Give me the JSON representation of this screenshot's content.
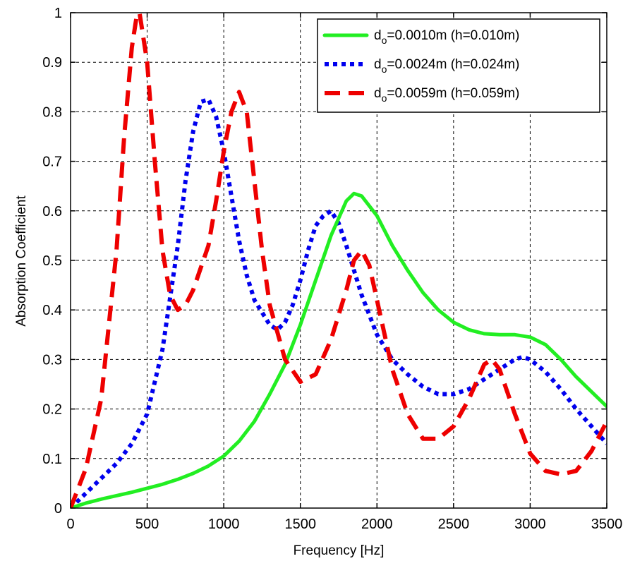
{
  "chart_data": {
    "type": "line",
    "title": "",
    "xlabel": "Frequency [Hz]",
    "ylabel": "Absorption Coefficient",
    "xlim": [
      0,
      3500
    ],
    "ylim": [
      0,
      1
    ],
    "xticks": [
      0,
      500,
      1000,
      1500,
      2000,
      2500,
      3000,
      3500
    ],
    "xtick_labels": [
      "0",
      "500",
      "1000",
      "1500",
      "2000",
      "2500",
      "3000",
      "3500"
    ],
    "yticks": [
      0,
      0.1,
      0.2,
      0.3,
      0.4,
      0.5,
      0.6,
      0.7,
      0.8,
      0.9,
      1
    ],
    "ytick_labels": [
      "0",
      "0.1",
      "0.2",
      "0.3",
      "0.4",
      "0.5",
      "0.6",
      "0.7",
      "0.8",
      "0.9",
      "1"
    ],
    "grid": true,
    "legend_position": "top-right",
    "series": [
      {
        "name": "d_o=0.0010m (h=0.010m)",
        "label_main": "d",
        "label_sub": "o",
        "label_rest": "=0.0010m (h=0.010m)",
        "color": "#22ee22",
        "style": "solid",
        "x": [
          0,
          100,
          200,
          300,
          400,
          500,
          600,
          700,
          800,
          900,
          1000,
          1100,
          1200,
          1300,
          1400,
          1500,
          1600,
          1700,
          1800,
          1850,
          1900,
          2000,
          2100,
          2200,
          2300,
          2400,
          2500,
          2600,
          2700,
          2800,
          2900,
          3000,
          3100,
          3200,
          3300,
          3400,
          3500
        ],
        "y": [
          0.0,
          0.01,
          0.018,
          0.025,
          0.032,
          0.04,
          0.048,
          0.058,
          0.07,
          0.085,
          0.105,
          0.135,
          0.175,
          0.23,
          0.29,
          0.37,
          0.46,
          0.55,
          0.62,
          0.635,
          0.63,
          0.59,
          0.53,
          0.48,
          0.435,
          0.4,
          0.375,
          0.36,
          0.352,
          0.35,
          0.35,
          0.345,
          0.33,
          0.3,
          0.265,
          0.235,
          0.205
        ]
      },
      {
        "name": "d_o=0.0024m (h=0.024m)",
        "label_main": "d",
        "label_sub": "o",
        "label_rest": "=0.0024m (h=0.024m)",
        "color": "#0000ee",
        "style": "dotted",
        "x": [
          0,
          100,
          200,
          300,
          400,
          500,
          600,
          700,
          750,
          800,
          850,
          900,
          950,
          1000,
          1050,
          1100,
          1150,
          1200,
          1300,
          1350,
          1400,
          1450,
          1500,
          1550,
          1600,
          1650,
          1700,
          1750,
          1800,
          1900,
          2000,
          2100,
          2200,
          2300,
          2400,
          2500,
          2600,
          2700,
          2800,
          2900,
          2950,
          3000,
          3100,
          3200,
          3300,
          3400,
          3500
        ],
        "y": [
          0.0,
          0.03,
          0.06,
          0.09,
          0.13,
          0.19,
          0.32,
          0.53,
          0.66,
          0.76,
          0.82,
          0.825,
          0.79,
          0.72,
          0.63,
          0.54,
          0.47,
          0.42,
          0.37,
          0.36,
          0.375,
          0.41,
          0.46,
          0.52,
          0.57,
          0.59,
          0.6,
          0.575,
          0.53,
          0.43,
          0.35,
          0.3,
          0.27,
          0.245,
          0.23,
          0.23,
          0.24,
          0.26,
          0.28,
          0.3,
          0.305,
          0.3,
          0.275,
          0.24,
          0.2,
          0.165,
          0.13
        ]
      },
      {
        "name": "d_o=0.0059m (h=0.059m)",
        "label_main": "d",
        "label_sub": "o",
        "label_rest": "=0.0059m (h=0.059m)",
        "color": "#ee0000",
        "style": "dashed",
        "x": [
          0,
          100,
          200,
          300,
          350,
          400,
          430,
          450,
          500,
          550,
          600,
          650,
          700,
          750,
          800,
          900,
          950,
          1000,
          1050,
          1100,
          1150,
          1200,
          1250,
          1300,
          1400,
          1500,
          1600,
          1700,
          1800,
          1850,
          1900,
          1950,
          2000,
          2100,
          2200,
          2300,
          2400,
          2500,
          2600,
          2700,
          2750,
          2800,
          2900,
          3000,
          3100,
          3200,
          3300,
          3400,
          3500
        ],
        "y": [
          0.0,
          0.08,
          0.22,
          0.52,
          0.75,
          0.93,
          0.99,
          1.0,
          0.9,
          0.7,
          0.52,
          0.43,
          0.4,
          0.41,
          0.44,
          0.53,
          0.62,
          0.72,
          0.8,
          0.84,
          0.8,
          0.66,
          0.52,
          0.41,
          0.3,
          0.255,
          0.27,
          0.34,
          0.44,
          0.5,
          0.52,
          0.49,
          0.42,
          0.28,
          0.19,
          0.14,
          0.14,
          0.165,
          0.22,
          0.29,
          0.3,
          0.28,
          0.19,
          0.11,
          0.075,
          0.068,
          0.075,
          0.115,
          0.175
        ]
      }
    ]
  }
}
